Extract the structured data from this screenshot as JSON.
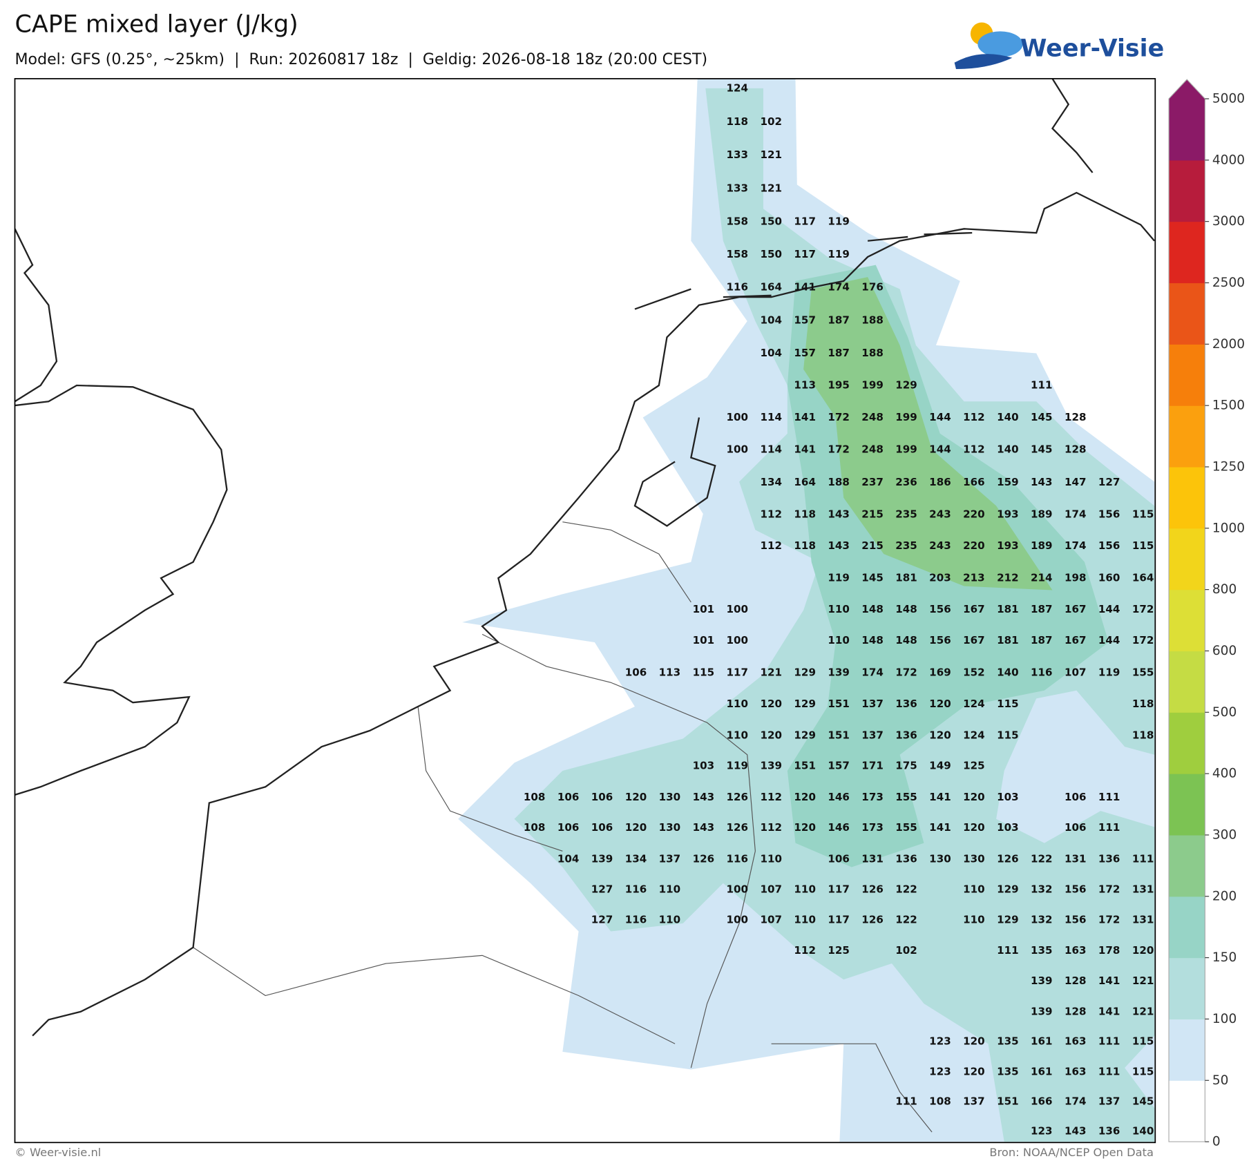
{
  "header": {
    "title": "CAPE mixed layer (J/kg)",
    "subtitle": "Model: GFS (0.25°, ~25km)  |  Run: 20260817 18z  |  Geldig: 2026-08-18 18z (20:00 CEST)",
    "logo": "Weer-Visie"
  },
  "map": {
    "grid_values": [
      [
        null,
        null,
        null,
        null,
        null,
        null,
        124,
        null,
        null,
        null,
        null,
        null,
        null,
        null,
        null,
        null,
        null,
        null,
        null
      ],
      [
        null,
        null,
        null,
        null,
        null,
        null,
        118,
        102,
        null,
        null,
        null,
        null,
        null,
        null,
        null,
        null,
        null,
        null,
        null
      ],
      [
        null,
        null,
        null,
        null,
        null,
        null,
        133,
        121,
        null,
        null,
        null,
        null,
        null,
        null,
        null,
        null,
        null,
        null,
        null
      ],
      [
        null,
        null,
        null,
        null,
        null,
        null,
        133,
        121,
        null,
        null,
        null,
        null,
        null,
        null,
        null,
        null,
        null,
        null,
        null
      ],
      [
        null,
        null,
        null,
        null,
        null,
        null,
        158,
        150,
        117,
        119,
        null,
        null,
        null,
        null,
        null,
        null,
        null,
        null,
        null
      ],
      [
        null,
        null,
        null,
        null,
        null,
        null,
        158,
        150,
        117,
        119,
        null,
        null,
        null,
        null,
        null,
        null,
        null,
        null,
        null
      ],
      [
        null,
        null,
        null,
        null,
        null,
        null,
        116,
        164,
        141,
        174,
        176,
        null,
        null,
        null,
        null,
        null,
        null,
        null,
        null
      ],
      [
        null,
        null,
        null,
        null,
        null,
        null,
        null,
        104,
        157,
        187,
        188,
        null,
        null,
        null,
        null,
        null,
        null,
        null,
        null
      ],
      [
        null,
        null,
        null,
        null,
        null,
        null,
        null,
        104,
        157,
        187,
        188,
        null,
        null,
        null,
        null,
        null,
        null,
        null,
        null
      ],
      [
        null,
        null,
        null,
        null,
        null,
        null,
        null,
        null,
        113,
        195,
        199,
        129,
        null,
        null,
        null,
        111,
        null,
        null,
        null
      ],
      [
        null,
        null,
        null,
        null,
        null,
        null,
        100,
        114,
        141,
        172,
        248,
        199,
        144,
        112,
        140,
        145,
        128,
        null,
        null
      ],
      [
        null,
        null,
        null,
        null,
        null,
        null,
        100,
        114,
        141,
        172,
        248,
        199,
        144,
        112,
        140,
        145,
        128,
        null,
        null
      ],
      [
        null,
        null,
        null,
        null,
        null,
        null,
        null,
        134,
        164,
        188,
        237,
        236,
        186,
        166,
        159,
        143,
        147,
        127,
        null
      ],
      [
        null,
        null,
        null,
        null,
        null,
        null,
        null,
        112,
        118,
        143,
        215,
        235,
        243,
        220,
        193,
        189,
        174,
        156,
        115
      ],
      [
        null,
        null,
        null,
        null,
        null,
        null,
        null,
        112,
        118,
        143,
        215,
        235,
        243,
        220,
        193,
        189,
        174,
        156,
        115
      ],
      [
        null,
        null,
        null,
        null,
        null,
        null,
        null,
        null,
        null,
        119,
        145,
        181,
        203,
        213,
        212,
        214,
        198,
        160,
        164
      ],
      [
        null,
        null,
        null,
        null,
        null,
        101,
        100,
        null,
        null,
        110,
        148,
        148,
        156,
        167,
        181,
        187,
        167,
        144,
        172
      ],
      [
        null,
        null,
        null,
        null,
        null,
        101,
        100,
        null,
        null,
        110,
        148,
        148,
        156,
        167,
        181,
        187,
        167,
        144,
        172
      ],
      [
        null,
        null,
        null,
        106,
        113,
        115,
        117,
        121,
        129,
        139,
        174,
        172,
        169,
        152,
        140,
        116,
        107,
        119,
        155
      ],
      [
        null,
        null,
        null,
        null,
        null,
        null,
        110,
        120,
        129,
        151,
        137,
        136,
        120,
        124,
        115,
        null,
        null,
        null,
        118
      ],
      [
        null,
        null,
        null,
        null,
        null,
        null,
        110,
        120,
        129,
        151,
        137,
        136,
        120,
        124,
        115,
        null,
        null,
        null,
        118
      ],
      [
        null,
        null,
        null,
        null,
        null,
        103,
        119,
        139,
        151,
        157,
        171,
        175,
        149,
        125,
        null,
        null,
        null,
        null,
        null
      ],
      [
        108,
        106,
        106,
        120,
        130,
        143,
        126,
        112,
        120,
        146,
        173,
        155,
        141,
        120,
        103,
        null,
        106,
        111,
        null
      ],
      [
        108,
        106,
        106,
        120,
        130,
        143,
        126,
        112,
        120,
        146,
        173,
        155,
        141,
        120,
        103,
        null,
        106,
        111,
        null
      ],
      [
        null,
        104,
        139,
        134,
        137,
        126,
        116,
        110,
        null,
        106,
        131,
        136,
        130,
        130,
        126,
        122,
        131,
        136,
        111
      ],
      [
        null,
        null,
        127,
        116,
        110,
        null,
        100,
        107,
        110,
        117,
        126,
        122,
        null,
        110,
        129,
        132,
        156,
        172,
        131
      ],
      [
        null,
        null,
        127,
        116,
        110,
        null,
        100,
        107,
        110,
        117,
        126,
        122,
        null,
        110,
        129,
        132,
        156,
        172,
        131
      ],
      [
        null,
        null,
        null,
        null,
        null,
        null,
        null,
        null,
        112,
        125,
        null,
        102,
        null,
        null,
        111,
        135,
        163,
        178,
        120
      ],
      [
        null,
        null,
        null,
        null,
        null,
        null,
        null,
        null,
        null,
        null,
        null,
        null,
        null,
        null,
        null,
        139,
        128,
        141,
        121
      ],
      [
        null,
        null,
        null,
        null,
        null,
        null,
        null,
        null,
        null,
        null,
        null,
        null,
        null,
        null,
        null,
        139,
        128,
        141,
        121
      ],
      [
        null,
        null,
        null,
        null,
        null,
        null,
        null,
        null,
        null,
        null,
        null,
        null,
        123,
        120,
        135,
        161,
        163,
        111,
        115
      ],
      [
        null,
        null,
        null,
        null,
        null,
        null,
        null,
        null,
        null,
        null,
        null,
        null,
        123,
        120,
        135,
        161,
        163,
        111,
        115
      ],
      [
        null,
        null,
        null,
        null,
        null,
        null,
        null,
        null,
        null,
        null,
        null,
        111,
        108,
        137,
        151,
        166,
        174,
        137,
        145
      ],
      [
        null,
        null,
        null,
        null,
        null,
        null,
        null,
        null,
        null,
        null,
        null,
        null,
        null,
        null,
        null,
        123,
        143,
        136,
        140
      ]
    ]
  },
  "colorbar": {
    "ticks": [
      0,
      50,
      100,
      150,
      200,
      300,
      400,
      500,
      600,
      800,
      1000,
      1250,
      1500,
      2000,
      2500,
      3000,
      4000,
      5000
    ],
    "colors": [
      "#ffffff",
      "#d1e6f5",
      "#b3dedd",
      "#97d4c6",
      "#8ccb8c",
      "#7cc353",
      "#9fce3e",
      "#c5dc44",
      "#dddf36",
      "#f2d51b",
      "#fcc40a",
      "#fba00e",
      "#f67f0b",
      "#ea5518",
      "#de261f",
      "#b71c3c",
      "#8b1a67"
    ],
    "extend_color": "#8b1a67"
  },
  "footer": {
    "copyright": "© Weer-visie.nl",
    "source": "Bron: NOAA/NCEP Open Data"
  }
}
